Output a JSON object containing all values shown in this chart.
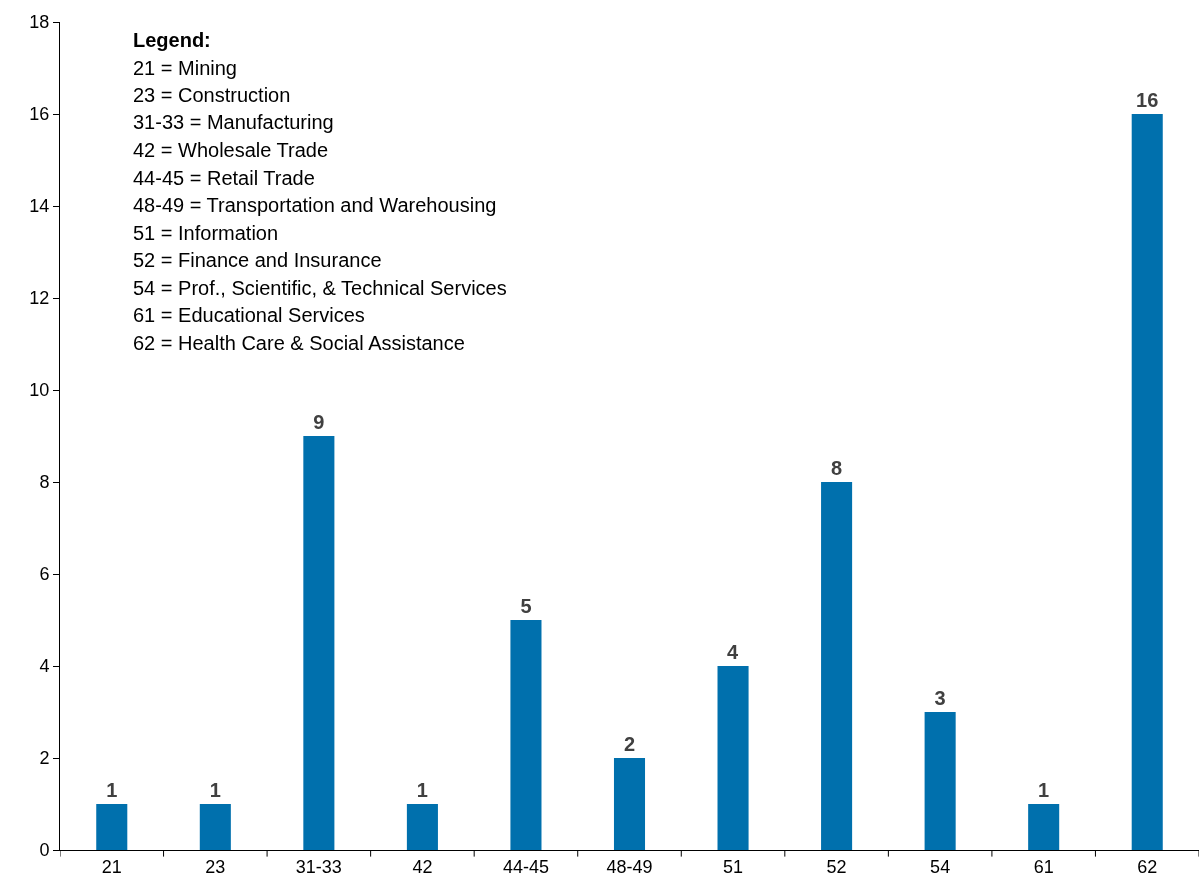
{
  "chart_data": {
    "type": "bar",
    "categories": [
      "21",
      "23",
      "31-33",
      "42",
      "44-45",
      "48-49",
      "51",
      "52",
      "54",
      "61",
      "62"
    ],
    "values": [
      1,
      1,
      9,
      1,
      5,
      2,
      4,
      8,
      3,
      1,
      16
    ],
    "color": "#0070ad",
    "ylim": [
      0,
      18
    ],
    "yticks": [
      0,
      2,
      4,
      6,
      8,
      10,
      12,
      14,
      16,
      18
    ],
    "data_labels": true,
    "annotations": [
      "Legend:",
      "21 = Mining",
      "23 = Construction",
      "31-33 = Manufacturing",
      "42 = Wholesale Trade",
      "44-45 = Retail Trade",
      "48-49 = Transportation and Warehousing",
      "51 = Information",
      "52 = Finance and Insurance",
      "54 = Prof., Scientific, & Technical Services",
      "61 = Educational Services",
      "62 = Health Care & Social Assistance"
    ]
  }
}
